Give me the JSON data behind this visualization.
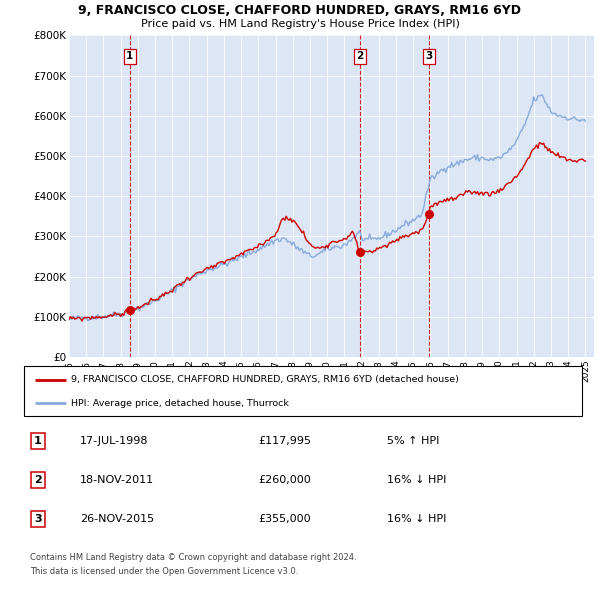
{
  "title_line1": "9, FRANCISCO CLOSE, CHAFFORD HUNDRED, GRAYS, RM16 6YD",
  "title_line2": "Price paid vs. HM Land Registry's House Price Index (HPI)",
  "ylim": [
    0,
    800000
  ],
  "yticks": [
    0,
    100000,
    200000,
    300000,
    400000,
    500000,
    600000,
    700000,
    800000
  ],
  "ytick_labels": [
    "£0",
    "£100K",
    "£200K",
    "£300K",
    "£400K",
    "£500K",
    "£600K",
    "£700K",
    "£800K"
  ],
  "xmin": 1995.0,
  "xmax": 2025.5,
  "sale_dates": [
    1998.54,
    2011.89,
    2015.91
  ],
  "sale_prices": [
    117995,
    260000,
    355000
  ],
  "sale_labels": [
    "1",
    "2",
    "3"
  ],
  "red_line_color": "#cc0000",
  "blue_line_color": "#88aadd",
  "dashed_line_color": "#cc0000",
  "plot_bg_color": "#dce6f5",
  "legend_label_red": "9, FRANCISCO CLOSE, CHAFFORD HUNDRED, GRAYS, RM16 6YD (detached house)",
  "legend_label_blue": "HPI: Average price, detached house, Thurrock",
  "table_rows": [
    {
      "num": "1",
      "date": "17-JUL-1998",
      "price": "£117,995",
      "hpi": "5% ↑ HPI"
    },
    {
      "num": "2",
      "date": "18-NOV-2011",
      "price": "£260,000",
      "hpi": "16% ↓ HPI"
    },
    {
      "num": "3",
      "date": "26-NOV-2015",
      "price": "£355,000",
      "hpi": "16% ↓ HPI"
    }
  ],
  "footnote1": "Contains HM Land Registry data © Crown copyright and database right 2024.",
  "footnote2": "This data is licensed under the Open Government Licence v3.0.",
  "background_color": "#ffffff",
  "grid_color": "#ffffff"
}
